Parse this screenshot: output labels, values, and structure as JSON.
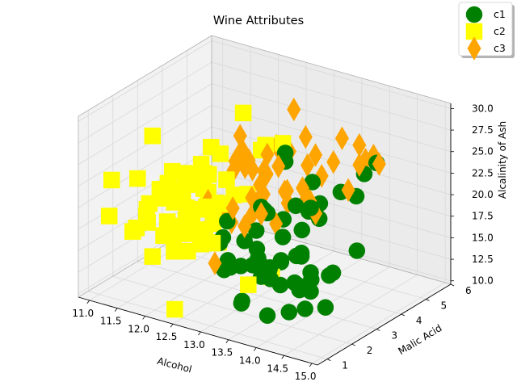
{
  "chart_data": {
    "type": "scatter",
    "projection": "3d",
    "title": "Wine Attributes",
    "xlabel": "Alcohol",
    "ylabel": "Malic Acid",
    "zlabel": "Alcalinity of Ash",
    "xlim": [
      10.8,
      15.1
    ],
    "ylim": [
      0.6,
      6.0
    ],
    "zlim": [
      9.6,
      30.6
    ],
    "xticks": [
      "11.0",
      "11.5",
      "12.0",
      "12.5",
      "13.0",
      "13.5",
      "14.0",
      "14.5",
      "15.0"
    ],
    "yticks": [
      "1",
      "2",
      "3",
      "4",
      "5",
      "6"
    ],
    "zticks": [
      "10.0",
      "12.5",
      "15.0",
      "17.5",
      "20.0",
      "22.5",
      "25.0",
      "27.5",
      "30.0"
    ],
    "grid": true,
    "legend_position": "top-right",
    "series": [
      {
        "name": "c1",
        "marker": "circle",
        "color": "#008000",
        "points": [
          [
            14.2,
            1.7,
            15.6
          ],
          [
            13.2,
            1.8,
            11.2
          ],
          [
            13.2,
            2.4,
            18.6
          ],
          [
            14.4,
            1.9,
            16.8
          ],
          [
            13.2,
            2.6,
            21.0
          ],
          [
            14.2,
            1.8,
            15.2
          ],
          [
            14.4,
            1.9,
            14.6
          ],
          [
            14.1,
            2.2,
            17.6
          ],
          [
            14.8,
            1.6,
            14.0
          ],
          [
            13.9,
            1.4,
            16.0
          ],
          [
            14.1,
            2.2,
            18.0
          ],
          [
            13.8,
            1.6,
            16.8
          ],
          [
            13.7,
            1.8,
            16.0
          ],
          [
            13.8,
            1.5,
            11.4
          ],
          [
            14.3,
            1.9,
            12.4
          ],
          [
            13.6,
            3.1,
            21.0
          ],
          [
            13.6,
            1.7,
            15.2
          ],
          [
            13.5,
            1.8,
            16.0
          ],
          [
            13.3,
            1.7,
            18.8
          ],
          [
            13.9,
            1.8,
            14.6
          ],
          [
            13.1,
            3.8,
            24.0
          ],
          [
            13.6,
            1.9,
            15.2
          ],
          [
            12.9,
            1.6,
            18.0
          ],
          [
            13.7,
            1.5,
            17.0
          ],
          [
            12.8,
            2.0,
            14.0
          ],
          [
            14.1,
            2.0,
            18.0
          ],
          [
            13.6,
            1.7,
            16.0
          ],
          [
            13.7,
            3.4,
            20.0
          ],
          [
            13.0,
            1.7,
            16.0
          ],
          [
            13.4,
            3.8,
            16.6
          ],
          [
            14.2,
            1.9,
            14.4
          ],
          [
            12.9,
            1.9,
            20.0
          ],
          [
            13.4,
            1.8,
            16.0
          ],
          [
            14.0,
            1.6,
            18.0
          ],
          [
            13.0,
            1.5,
            19.0
          ],
          [
            13.7,
            1.6,
            16.0
          ],
          [
            13.3,
            2.5,
            21.0
          ],
          [
            13.5,
            1.8,
            17.0
          ],
          [
            14.5,
            1.7,
            16.5
          ],
          [
            13.3,
            2.2,
            17.0
          ],
          [
            14.8,
            1.9,
            17.5
          ],
          [
            13.1,
            3.8,
            25.0
          ],
          [
            13.5,
            4.0,
            22.0
          ],
          [
            13.9,
            1.9,
            20.0
          ],
          [
            13.8,
            3.6,
            19.0
          ],
          [
            13.7,
            4.7,
            20.0
          ],
          [
            13.9,
            5.2,
            21.6
          ],
          [
            14.3,
            4.0,
            15.5
          ],
          [
            13.1,
            2.0,
            15.0
          ],
          [
            13.6,
            2.5,
            15.5
          ],
          [
            13.2,
            3.5,
            18.0
          ],
          [
            14.0,
            2.8,
            22.0
          ],
          [
            13.0,
            1.8,
            15.0
          ],
          [
            13.4,
            2.4,
            21.0
          ],
          [
            14.1,
            1.7,
            12.0
          ],
          [
            13.5,
            4.3,
            19.0
          ],
          [
            13.8,
            5.1,
            19.0
          ],
          [
            14.2,
            3.1,
            14.0
          ],
          [
            13.3,
            1.6,
            12.0
          ],
          [
            13.9,
            5.7,
            22.0
          ]
        ]
      },
      {
        "name": "c2",
        "marker": "square",
        "color": "#ffff00",
        "points": [
          [
            12.4,
            0.9,
            10.6
          ],
          [
            12.3,
            1.1,
            16.8
          ],
          [
            12.6,
            1.5,
            17.5
          ],
          [
            13.7,
            1.9,
            15.0
          ],
          [
            12.4,
            1.6,
            18.5
          ],
          [
            12.2,
            1.3,
            18.0
          ],
          [
            12.3,
            1.7,
            20.0
          ],
          [
            13.5,
            1.4,
            14.6
          ],
          [
            12.0,
            0.9,
            16.0
          ],
          [
            11.8,
            1.1,
            20.0
          ],
          [
            12.4,
            1.6,
            20.0
          ],
          [
            12.0,
            1.5,
            19.0
          ],
          [
            11.6,
            1.6,
            18.0
          ],
          [
            12.3,
            1.5,
            19.0
          ],
          [
            11.5,
            1.8,
            19.0
          ],
          [
            12.0,
            0.9,
            30.0
          ],
          [
            12.7,
            1.5,
            22.0
          ],
          [
            11.8,
            1.7,
            21.0
          ],
          [
            12.3,
            1.6,
            21.0
          ],
          [
            12.1,
            1.3,
            24.0
          ],
          [
            12.6,
            2.0,
            19.0
          ],
          [
            12.3,
            1.6,
            25.0
          ],
          [
            11.9,
            2.0,
            21.5
          ],
          [
            12.5,
            1.7,
            21.0
          ],
          [
            12.5,
            1.0,
            24.0
          ],
          [
            11.6,
            2.1,
            21.0
          ],
          [
            12.3,
            2.3,
            22.0
          ],
          [
            12.4,
            1.6,
            20.0
          ],
          [
            12.9,
            1.3,
            18.5
          ],
          [
            11.0,
            1.5,
            22.0
          ],
          [
            11.8,
            1.8,
            16.5
          ],
          [
            12.3,
            1.1,
            22.5
          ],
          [
            11.6,
            1.0,
            18.0
          ],
          [
            12.4,
            2.6,
            20.0
          ],
          [
            11.5,
            1.9,
            19.5
          ],
          [
            12.0,
            3.0,
            22.0
          ],
          [
            11.0,
            1.4,
            18.0
          ],
          [
            12.3,
            2.2,
            25.0
          ],
          [
            12.2,
            2.0,
            22.8
          ],
          [
            11.8,
            2.7,
            21.0
          ],
          [
            12.9,
            1.6,
            22.5
          ],
          [
            12.4,
            1.4,
            18.5
          ],
          [
            11.5,
            2.7,
            20.0
          ],
          [
            12.4,
            3.0,
            22.0
          ],
          [
            11.2,
            2.1,
            21.5
          ],
          [
            12.7,
            1.8,
            21.0
          ],
          [
            12.1,
            1.9,
            17.5
          ],
          [
            12.7,
            3.9,
            25.0
          ],
          [
            11.9,
            3.4,
            21.0
          ],
          [
            12.7,
            4.6,
            24.0
          ],
          [
            12.1,
            2.8,
            16.0
          ],
          [
            11.4,
            3.7,
            19.5
          ],
          [
            12.1,
            2.4,
            22.0
          ],
          [
            12.6,
            3.4,
            20.0
          ],
          [
            11.8,
            4.1,
            22.0
          ],
          [
            12.4,
            4.4,
            23.0
          ],
          [
            12.0,
            1.7,
            24.5
          ],
          [
            12.2,
            1.8,
            19.0
          ],
          [
            11.9,
            3.5,
            24.0
          ],
          [
            12.1,
            1.9,
            18.0
          ],
          [
            12.7,
            2.0,
            17.0
          ],
          [
            12.3,
            3.9,
            28.0
          ],
          [
            12.5,
            1.2,
            17.0
          ],
          [
            11.4,
            1.6,
            17.0
          ],
          [
            12.8,
            2.4,
            22.0
          ],
          [
            12.6,
            1.8,
            23.0
          ]
        ]
      },
      {
        "name": "c3",
        "marker": "diamond",
        "color": "#ffa500",
        "points": [
          [
            12.9,
            1.4,
            16.0
          ],
          [
            12.8,
            3.6,
            20.0
          ],
          [
            12.8,
            2.3,
            19.0
          ],
          [
            12.7,
            3.0,
            25.0
          ],
          [
            12.5,
            4.8,
            23.0
          ],
          [
            12.6,
            5.1,
            22.0
          ],
          [
            12.3,
            3.5,
            22.0
          ],
          [
            12.8,
            3.0,
            25.0
          ],
          [
            12.6,
            1.8,
            22.0
          ],
          [
            13.3,
            1.7,
            20.5
          ],
          [
            13.2,
            2.7,
            25.0
          ],
          [
            13.1,
            3.9,
            19.0
          ],
          [
            12.6,
            3.6,
            22.5
          ],
          [
            13.4,
            4.6,
            21.5
          ],
          [
            13.0,
            4.0,
            20.0
          ],
          [
            12.8,
            2.0,
            21.0
          ],
          [
            13.4,
            1.0,
            24.0
          ],
          [
            13.6,
            1.7,
            22.5
          ],
          [
            12.2,
            4.0,
            25.0
          ],
          [
            13.5,
            3.9,
            20.0
          ],
          [
            13.0,
            3.0,
            22.5
          ],
          [
            12.5,
            3.4,
            25.0
          ],
          [
            13.2,
            4.4,
            26.0
          ],
          [
            13.8,
            2.3,
            24.5
          ],
          [
            13.3,
            2.6,
            25.0
          ],
          [
            13.2,
            3.3,
            24.5
          ],
          [
            14.0,
            3.0,
            21.0
          ],
          [
            13.0,
            3.3,
            25.5
          ],
          [
            12.9,
            2.9,
            21.0
          ],
          [
            13.5,
            3.6,
            22.0
          ],
          [
            13.4,
            4.0,
            20.0
          ],
          [
            13.3,
            4.1,
            19.0
          ],
          [
            13.7,
            5.7,
            22.0
          ],
          [
            13.6,
            3.9,
            25.5
          ],
          [
            13.0,
            2.0,
            27.0
          ],
          [
            13.5,
            5.2,
            25.0
          ],
          [
            12.5,
            5.5,
            26.0
          ],
          [
            14.3,
            4.9,
            24.0
          ],
          [
            13.2,
            3.2,
            18.0
          ],
          [
            12.2,
            4.2,
            21.0
          ],
          [
            13.1,
            2.4,
            20.0
          ],
          [
            14.1,
            4.1,
            22.0
          ],
          [
            13.8,
            5.8,
            22.5
          ],
          [
            13.9,
            5.0,
            23.0
          ],
          [
            13.7,
            4.4,
            24.0
          ],
          [
            12.8,
            3.5,
            20.0
          ],
          [
            13.5,
            5.9,
            23.0
          ],
          [
            13.1,
            4.7,
            22.0
          ]
        ]
      }
    ]
  }
}
